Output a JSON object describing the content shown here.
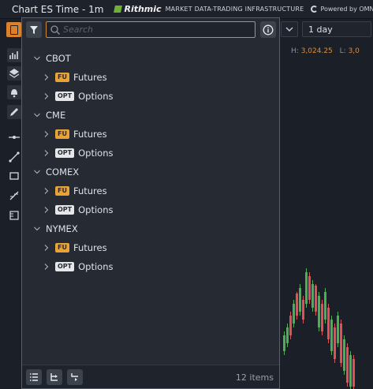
{
  "titlebar": {
    "title": "Chart ES Time - 1m",
    "brand_name": "Rithmic",
    "brand_tag": "MARKET DATA-TRADING INFRASTRUCTURE",
    "powered_by": "Powered by OMNE"
  },
  "toolbar": {
    "timeframe": "1 day",
    "high_label": "H:",
    "high_value": "3,024.25",
    "low_label": "L:",
    "low_value": "3,0"
  },
  "panel": {
    "search_placeholder": "Search",
    "exchanges": [
      {
        "name": "CBOT",
        "items": [
          {
            "badge": "FU",
            "label": "Futures"
          },
          {
            "badge": "OPT",
            "label": "Options"
          }
        ]
      },
      {
        "name": "CME",
        "items": [
          {
            "badge": "FU",
            "label": "Futures"
          },
          {
            "badge": "OPT",
            "label": "Options"
          }
        ]
      },
      {
        "name": "COMEX",
        "items": [
          {
            "badge": "FU",
            "label": "Futures"
          },
          {
            "badge": "OPT",
            "label": "Options"
          }
        ]
      },
      {
        "name": "NYMEX",
        "items": [
          {
            "badge": "FU",
            "label": "Futures"
          },
          {
            "badge": "OPT",
            "label": "Options"
          }
        ]
      }
    ],
    "count": "12 items"
  },
  "icons": [
    "menu-icon",
    "filter-icon",
    "search-icon",
    "info-icon",
    "chevron-down-icon",
    "chevron-right-icon",
    "list-view-icon",
    "tree-expand-icon",
    "tree-collapse-icon"
  ],
  "colors": {
    "accent": "#d9822b",
    "futures_badge": "#e7a33a",
    "options_badge": "#e4e6e9",
    "candle_up": "#4caf50",
    "candle_down": "#e05252"
  }
}
